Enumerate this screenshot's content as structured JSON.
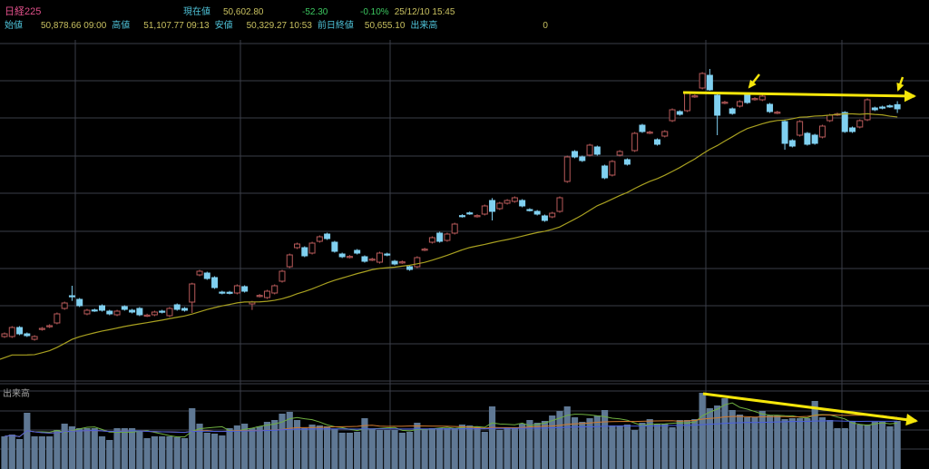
{
  "header": {
    "title": "日経225",
    "current_label": "現在値",
    "current_value": "50,602.80",
    "change": "-52.30",
    "change_pct": "-0.10%",
    "datetime": "25/12/10 15:45",
    "open_label": "始値",
    "open_value": "50,878.66 09:00",
    "high_label": "高値",
    "high_value": "51,107.77 09:13",
    "low_label": "安値",
    "low_value": "50,329.27 10:53",
    "prev_close_label": "前日終値",
    "prev_close_value": "50,655.10",
    "volume_label": "出来高",
    "volume_value": "0"
  },
  "volume_panel": {
    "label": "出来高"
  },
  "colors": {
    "up": "#b85a5a",
    "down": "#80d0f0",
    "ma": "#a8a020",
    "vol_bar": "#5f7894",
    "vol_ma_short": "#6fb040",
    "vol_ma_mid": "#d07a30",
    "vol_ma_long": "#4a5ee0",
    "annotation": "#f5e60a",
    "grid": "#3a3e48"
  },
  "chart_data": {
    "type": "candlestick",
    "price_ma_period": 25,
    "volume_ma_periods": [
      5,
      25,
      75
    ],
    "candles_oc": [
      [
        35540,
        35720
      ],
      [
        35540,
        36140
      ],
      [
        36140,
        35720
      ],
      [
        35720,
        35600
      ],
      [
        35360,
        35540
      ],
      [
        36020,
        36080
      ],
      [
        36200,
        36260
      ],
      [
        36440,
        37040
      ],
      [
        37400,
        37760
      ],
      [
        38240,
        38180
      ],
      [
        38000,
        37580
      ],
      [
        37040,
        37280
      ],
      [
        37300,
        37260
      ],
      [
        37580,
        37280
      ],
      [
        37220,
        37040
      ],
      [
        36980,
        37220
      ],
      [
        37520,
        37340
      ],
      [
        37280,
        37160
      ],
      [
        37400,
        36980
      ],
      [
        36920,
        36960
      ],
      [
        36980,
        37160
      ],
      [
        37220,
        37160
      ],
      [
        36920,
        37400
      ],
      [
        37640,
        37340
      ],
      [
        37400,
        37280
      ],
      [
        37820,
        39020
      ],
      [
        39620,
        39860
      ],
      [
        39740,
        39380
      ],
      [
        39440,
        38780
      ],
      [
        38480,
        38420
      ],
      [
        38470,
        38420
      ],
      [
        38420,
        38900
      ],
      [
        38840,
        38540
      ],
      [
        37700,
        37820
      ],
      [
        38220,
        38260
      ],
      [
        38120,
        38540
      ],
      [
        38420,
        38900
      ],
      [
        39200,
        39860
      ],
      [
        40160,
        40940
      ],
      [
        41420,
        41660
      ],
      [
        41420,
        40880
      ],
      [
        41060,
        41720
      ],
      [
        41840,
        42140
      ],
      [
        42320,
        42020
      ],
      [
        41780,
        41180
      ],
      [
        41000,
        40820
      ],
      [
        40800,
        40840
      ],
      [
        41240,
        41060
      ],
      [
        40820,
        40520
      ],
      [
        40620,
        40660
      ],
      [
        40460,
        41060
      ],
      [
        41000,
        40940
      ],
      [
        40520,
        40340
      ],
      [
        40440,
        40480
      ],
      [
        40160,
        39980
      ],
      [
        40160,
        40760
      ],
      [
        41280,
        41320
      ],
      [
        41780,
        42080
      ],
      [
        42380,
        41840
      ],
      [
        41900,
        42320
      ],
      [
        42380,
        42980
      ],
      [
        43540,
        43500
      ],
      [
        43720,
        43680
      ],
      [
        43500,
        43540
      ],
      [
        43640,
        44180
      ],
      [
        44540,
        43820
      ],
      [
        44000,
        44360
      ],
      [
        44360,
        44540
      ],
      [
        44480,
        44720
      ],
      [
        44540,
        44180
      ],
      [
        43940,
        43900
      ],
      [
        43820,
        43640
      ],
      [
        43520,
        43220
      ],
      [
        43460,
        43700
      ],
      [
        43820,
        44720
      ],
      [
        45800,
        47420
      ],
      [
        47780,
        47420
      ],
      [
        47420,
        47180
      ],
      [
        47540,
        48200
      ],
      [
        48080,
        47600
      ],
      [
        46820,
        46040
      ],
      [
        46220,
        47120
      ],
      [
        47540,
        47780
      ],
      [
        47240,
        46940
      ],
      [
        47840,
        48980
      ],
      [
        49520,
        49100
      ],
      [
        49020,
        49060
      ],
      [
        48560,
        48260
      ],
      [
        48800,
        49100
      ],
      [
        49820,
        50540
      ],
      [
        50420,
        50240
      ],
      [
        50480,
        51620
      ],
      [
        51420,
        51460
      ],
      [
        51980,
        52940
      ],
      [
        52820,
        51860
      ],
      [
        51500,
        50180
      ],
      [
        51000,
        51040
      ],
      [
        50600,
        50300
      ],
      [
        50780,
        51080
      ],
      [
        51500,
        51020
      ],
      [
        51240,
        51280
      ],
      [
        51200,
        51440
      ],
      [
        50900,
        50420
      ],
      [
        50340,
        50380
      ],
      [
        49760,
        48320
      ],
      [
        48500,
        48140
      ],
      [
        48860,
        49760
      ],
      [
        48980,
        48260
      ],
      [
        48860,
        48320
      ],
      [
        48740,
        49460
      ],
      [
        49820,
        50180
      ],
      [
        50220,
        50260
      ],
      [
        50360,
        49100
      ],
      [
        49340,
        49100
      ],
      [
        49400,
        49820
      ],
      [
        49880,
        51200
      ],
      [
        50660,
        50540
      ],
      [
        50720,
        50660
      ],
      [
        50800,
        50760
      ],
      [
        50878.66,
        50602.8
      ]
    ],
    "wick_overrides": {
      "9": [
        38900,
        37900
      ],
      "25": [
        39100,
        37100
      ],
      "65": [
        44700,
        43220
      ],
      "94": [
        53240,
        51800
      ],
      "95": [
        51600,
        48860
      ],
      "33": [
        37900,
        37300
      ],
      "104": [
        49900,
        47900
      ],
      "119": [
        51107.77,
        50329.27
      ]
    },
    "volume": [
      36,
      38,
      33,
      62,
      36,
      36,
      36,
      43,
      50,
      47,
      45,
      45,
      45,
      36,
      32,
      45,
      45,
      45,
      42,
      34,
      36,
      36,
      36,
      35,
      34,
      67,
      50,
      40,
      39,
      37,
      45,
      48,
      50,
      45,
      47,
      52,
      54,
      61,
      63,
      54,
      45,
      49,
      48,
      47,
      44,
      40,
      40,
      41,
      56,
      44,
      43,
      43,
      43,
      40,
      41,
      51,
      44,
      45,
      45,
      45,
      45,
      49,
      48,
      47,
      41,
      69,
      43,
      46,
      45,
      50,
      54,
      51,
      53,
      59,
      64,
      69,
      57,
      52,
      56,
      59,
      65,
      48,
      48,
      49,
      43,
      51,
      55,
      50,
      50,
      46,
      54,
      54,
      55,
      84,
      67,
      70,
      78,
      65,
      60,
      57,
      57,
      64,
      59,
      59,
      55,
      56,
      56,
      56,
      75,
      57,
      54,
      45,
      45,
      53,
      49,
      49,
      52,
      52,
      47,
      53
    ]
  }
}
